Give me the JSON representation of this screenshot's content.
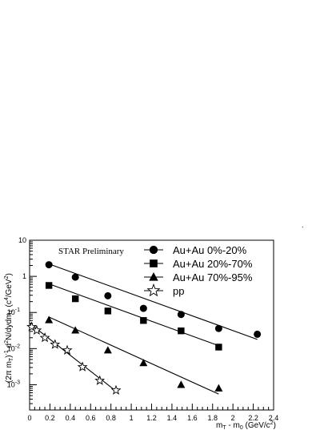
{
  "chart_data": {
    "type": "scatter",
    "title": "",
    "annotation": "STAR Preliminary",
    "xlabel": {
      "main": "m",
      "sub1": "T",
      "mid": " - m",
      "sub2": "0",
      "unit": " (GeV/c",
      "sup": "2",
      "close": ")"
    },
    "ylabel": {
      "p1": "(2",
      "pi": "π",
      "p2": " m",
      "sub1": "T",
      "p3": ")",
      "sup1": "-1",
      "p4": " d",
      "sup2": "2",
      "p5": "N/dydm",
      "sub2": "T",
      "p6": " (c",
      "sup3": "4",
      "p7": "/GeV",
      "sup4": "2",
      "p8": ")"
    },
    "xlim": [
      0,
      2.4
    ],
    "ylim": [
      0.0002,
      10
    ],
    "yscale": "log",
    "x_ticks": [
      "0",
      "0.2",
      "0.4",
      "0.6",
      "0.8",
      "1",
      "1.2",
      "1.4",
      "1.6",
      "1.8",
      "2",
      "2.2",
      "2.4"
    ],
    "y_ticks": [
      {
        "base": "10",
        "exp": ""
      },
      {
        "base": "1",
        "exp": ""
      },
      {
        "base": "10",
        "exp": "-1"
      },
      {
        "base": "10",
        "exp": "-2"
      },
      {
        "base": "10",
        "exp": "-3"
      }
    ],
    "legend_position": "top-right",
    "series": [
      {
        "name": "Au+Au 0%-20%",
        "marker": "circle",
        "x": [
          0.19,
          0.45,
          0.77,
          1.12,
          1.49,
          1.86,
          2.24
        ],
        "y": [
          2.1,
          0.95,
          0.29,
          0.13,
          0.088,
          0.036,
          0.025
        ],
        "fit": [
          [
            0.19,
            2.2
          ],
          [
            2.24,
            0.018
          ]
        ]
      },
      {
        "name": "Au+Au 20%-70%",
        "marker": "square",
        "x": [
          0.19,
          0.45,
          0.77,
          1.12,
          1.49,
          1.86
        ],
        "y": [
          0.56,
          0.24,
          0.11,
          0.06,
          0.031,
          0.011
        ],
        "fit": [
          [
            0.19,
            0.62
          ],
          [
            1.86,
            0.012
          ]
        ]
      },
      {
        "name": "Au+Au 70%-95%",
        "marker": "triangle",
        "x": [
          0.19,
          0.45,
          0.77,
          1.12,
          1.49,
          1.86
        ],
        "y": [
          0.062,
          0.032,
          0.009,
          0.004,
          0.001,
          0.0008
        ],
        "fit": [
          [
            0.19,
            0.075
          ],
          [
            1.86,
            0.00055
          ]
        ]
      },
      {
        "name": "pp",
        "marker": "star-open",
        "x": [
          0.02,
          0.07,
          0.15,
          0.25,
          0.37,
          0.52,
          0.69,
          0.85
        ],
        "y": [
          0.04,
          0.032,
          0.02,
          0.013,
          0.009,
          0.0031,
          0.0013,
          0.0007
        ],
        "fit": [
          [
            0.0,
            0.05
          ],
          [
            0.87,
            0.0006
          ]
        ]
      }
    ]
  }
}
